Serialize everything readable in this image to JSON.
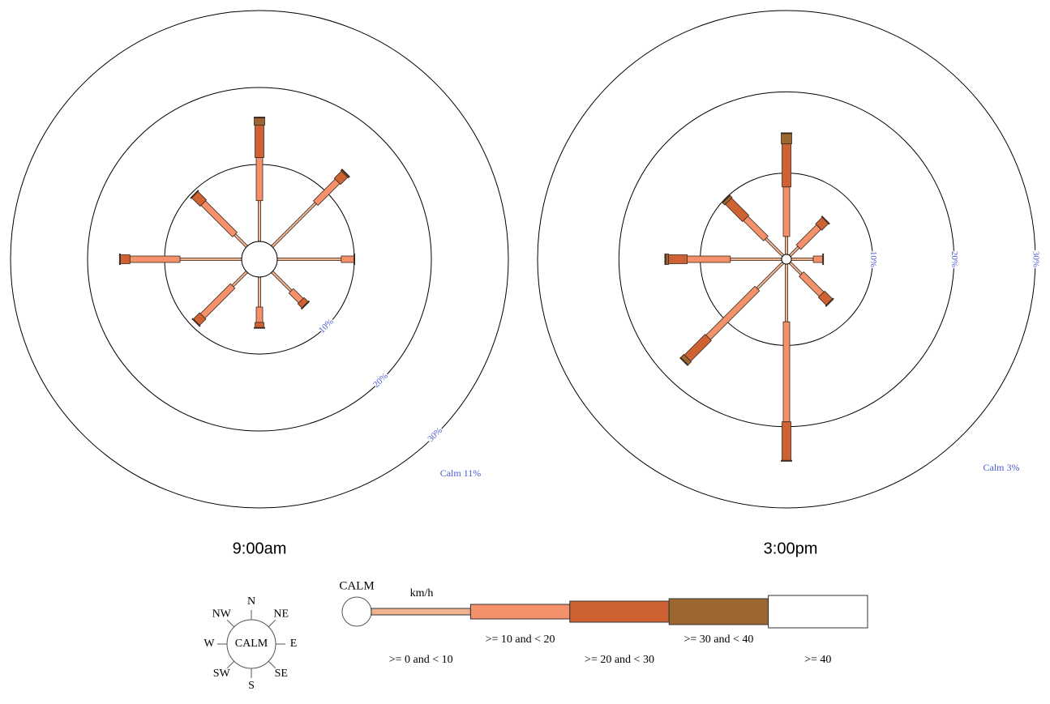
{
  "chart_data": [
    {
      "type": "windrose",
      "title": "9:00am",
      "categories": [
        "N",
        "NE",
        "E",
        "SE",
        "S",
        "SW",
        "W",
        "NW"
      ],
      "series": [
        {
          "name": ">= 0 and < 10",
          "color": "#f2b48c",
          "values": [
            5.3,
            8.0,
            8.3,
            3.5,
            3.9,
            2.6,
            8.0,
            2.2
          ]
        },
        {
          "name": ">= 10 and < 20",
          "color": "#f4906a",
          "values": [
            5.6,
            4.0,
            1.7,
            1.8,
            2.0,
            5.5,
            6.5,
            5.8
          ]
        },
        {
          "name": ">= 20 and < 30",
          "color": "#cf6232",
          "values": [
            4.2,
            1.3,
            0,
            0.8,
            0.7,
            1.2,
            1.3,
            1.6
          ]
        },
        {
          "name": ">= 30 and < 40",
          "color": "#9c6631",
          "values": [
            1.0,
            0.2,
            0,
            0,
            0,
            0,
            0,
            0
          ]
        },
        {
          "name": ">= 40",
          "color": "#ffffff",
          "values": [
            0,
            0,
            0,
            0,
            0,
            0,
            0,
            0
          ]
        }
      ],
      "rlim": [
        0,
        30
      ],
      "rticks": [
        {
          "value": 10,
          "label": "10%"
        },
        {
          "value": 20,
          "label": "20%"
        },
        {
          "value": 30,
          "label": "30%"
        }
      ],
      "calm": 11,
      "calm_label": "Calm 11%"
    },
    {
      "type": "windrose",
      "title": "3:00pm",
      "categories": [
        "N",
        "NE",
        "E",
        "SE",
        "S",
        "SW",
        "W",
        "NW"
      ],
      "series": [
        {
          "name": ">= 0 and < 10",
          "color": "#f2b48c",
          "values": [
            2.2,
            1.5,
            2.7,
            2.0,
            7.1,
            4.5,
            6.3,
            3.0
          ]
        },
        {
          "name": ">= 10 and < 20",
          "color": "#f4906a",
          "values": [
            6.1,
            3.5,
            1.2,
            3.5,
            12.3,
            8.5,
            5.3,
            3.5
          ]
        },
        {
          "name": ">= 20 and < 30",
          "color": "#cf6232",
          "values": [
            5.3,
            1.2,
            0,
            1.4,
            4.8,
            3.6,
            2.3,
            3.0
          ]
        },
        {
          "name": ">= 30 and < 40",
          "color": "#9c6631",
          "values": [
            1.3,
            0,
            0,
            0,
            0,
            0.6,
            0.4,
            0.4
          ]
        },
        {
          "name": ">= 40",
          "color": "#ffffff",
          "values": [
            0,
            0,
            0,
            0,
            0,
            0,
            0,
            0
          ]
        }
      ],
      "rlim": [
        0,
        30
      ],
      "rticks": [
        {
          "value": 10,
          "label": "10%"
        },
        {
          "value": 20,
          "label": "20%"
        },
        {
          "value": 30,
          "label": "30%"
        }
      ],
      "calm": 3,
      "calm_label": "Calm 3%"
    }
  ],
  "legend": {
    "calm_label": "CALM",
    "unit": "km/h"
  }
}
